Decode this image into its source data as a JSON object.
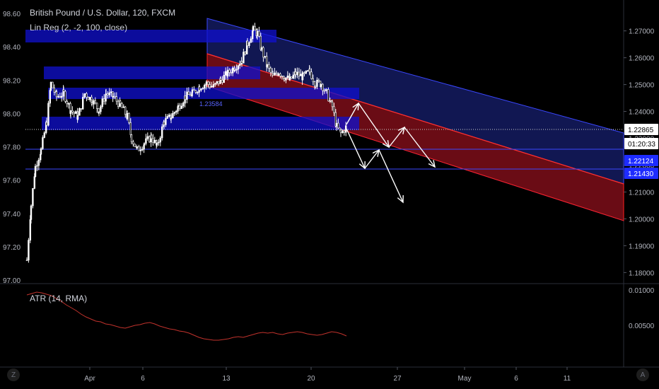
{
  "header": {
    "title": "British Pound / U.S. Dollar, 120, FXCM",
    "study_label": "Lin Reg (2, -2, 100, close)",
    "atr_label": "ATR (14, RMA)"
  },
  "corner_left": "Z",
  "corner_right": "A",
  "colors": {
    "background": "#000000",
    "candle_up": "#ffffff",
    "candle_down": "#ffffff",
    "upper_band": "#1f2a96",
    "lower_band": "#7a0a0a",
    "zone_fill": "#1010d0",
    "atr_line": "#c0322c",
    "axis_text": "#b2b5be"
  },
  "chart_data": {
    "type": "candlestick",
    "left_axis": {
      "ticks": [
        "98.60",
        "98.40",
        "98.20",
        "98.00",
        "97.80",
        "97.60",
        "97.40",
        "97.20",
        "97.00"
      ],
      "range": [
        97.0,
        98.6
      ]
    },
    "right_axis": {
      "ticks": [
        "1.27000",
        "1.26000",
        "1.25000",
        "1.24000",
        "1.23000",
        "1.22000",
        "1.21000",
        "1.20000",
        "1.19000",
        "1.18000"
      ],
      "range": [
        1.1772,
        1.2765
      ]
    },
    "price_labels": [
      {
        "value": "1.22865",
        "style": "current"
      },
      {
        "value": "01:20:33",
        "style": "countdown"
      },
      {
        "value": "1.22124",
        "style": "level"
      },
      {
        "value": "1.21430",
        "style": "level"
      }
    ],
    "x_ticks": [
      "Apr",
      "6",
      "13",
      "20",
      "27",
      "May",
      "6",
      "11"
    ],
    "overlay_text": "1.23584",
    "atr_axis_ticks": [
      "0.01000",
      "0.00500"
    ],
    "atr_range": [
      0.0,
      0.01
    ],
    "atr_values": [
      0.0093,
      0.0095,
      0.0097,
      0.0096,
      0.0094,
      0.0092,
      0.0088,
      0.0084,
      0.0079,
      0.0075,
      0.0071,
      0.0066,
      0.0062,
      0.0059,
      0.0056,
      0.0055,
      0.0052,
      0.0051,
      0.0049,
      0.0047,
      0.0046,
      0.0048,
      0.005,
      0.0051,
      0.0053,
      0.0054,
      0.0052,
      0.0049,
      0.0047,
      0.0045,
      0.0044,
      0.0042,
      0.0041,
      0.0039,
      0.0036,
      0.0033,
      0.0031,
      0.003,
      0.0029,
      0.0029,
      0.003,
      0.0031,
      0.0033,
      0.0034,
      0.0033,
      0.0035,
      0.0037,
      0.0039,
      0.004,
      0.0039,
      0.004,
      0.0038,
      0.0037,
      0.0039,
      0.004,
      0.0041,
      0.004,
      0.0038,
      0.0037,
      0.0036,
      0.0037,
      0.0039,
      0.0041,
      0.004,
      0.0038,
      0.0035
    ]
  }
}
